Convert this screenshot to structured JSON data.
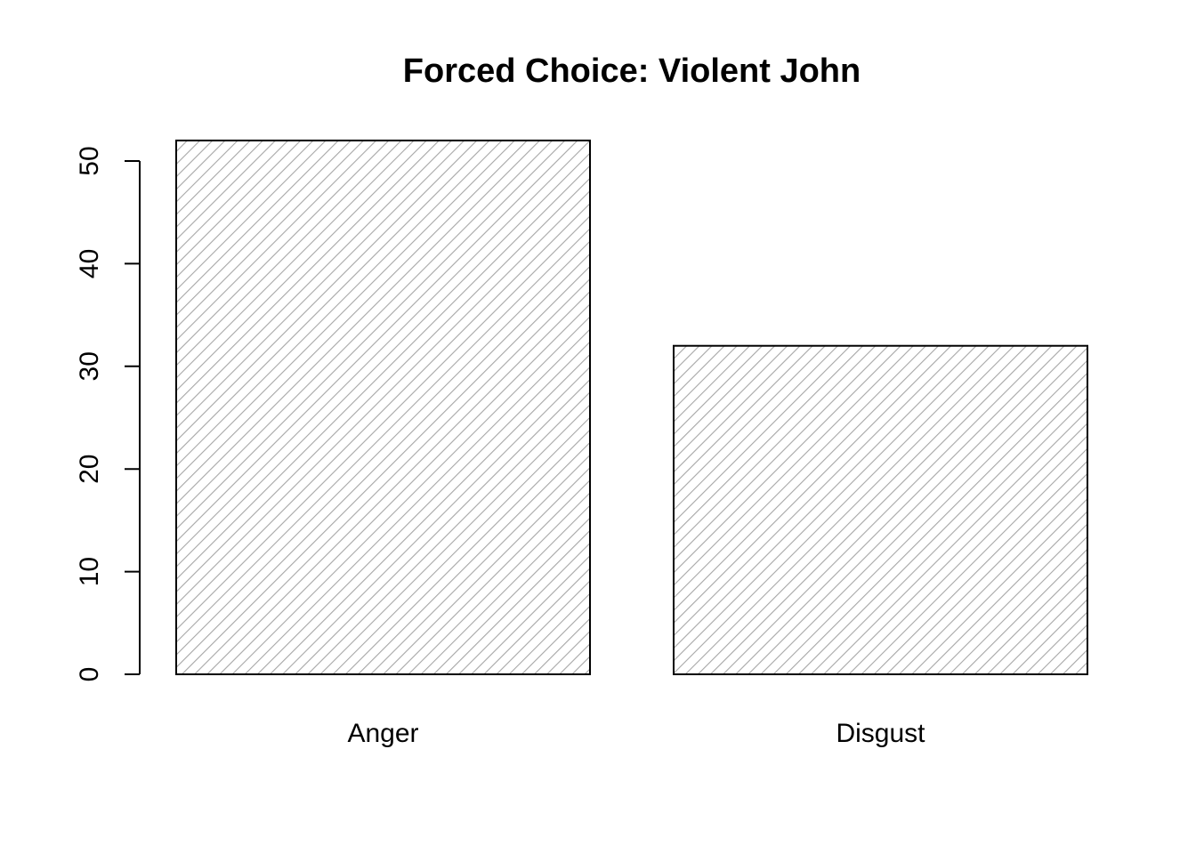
{
  "chart_data": {
    "type": "bar",
    "title": "Forced Choice: Violent John",
    "xlabel": "",
    "ylabel": "",
    "categories": [
      "Anger",
      "Disgust"
    ],
    "values": [
      52,
      32
    ],
    "ylim": [
      0,
      52
    ],
    "yticks": [
      0,
      10,
      20,
      30,
      40,
      50
    ],
    "grid": false,
    "legend": "none",
    "bar_fill": "hatched-diagonal",
    "hatch_color": "#a6a6a6",
    "bar_border_color": "#000000"
  }
}
